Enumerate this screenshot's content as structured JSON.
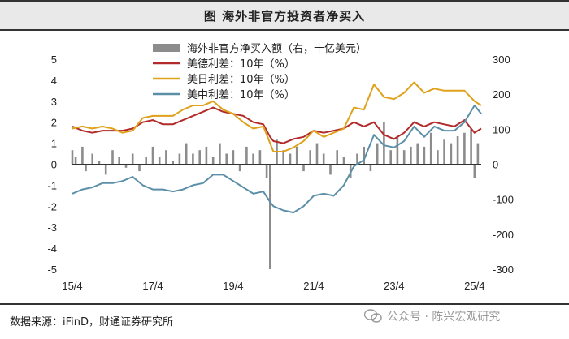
{
  "figure_title": "图  海外非官方投资者净买入",
  "source_note": "数据来源：iFinD，财通证券研究所",
  "watermark": "公众号 · 陈兴宏观研究",
  "colors": {
    "bars": "#8c8c8c",
    "de_spread": "#b22a2a",
    "jp_spread": "#e0a11b",
    "cn_spread": "#5b8fa8"
  },
  "chart_data": {
    "type": "line",
    "x_tick_labels": [
      "15/4",
      "17/4",
      "19/4",
      "21/4",
      "23/4",
      "25/4"
    ],
    "x_range": [
      "2015-04",
      "2025-06"
    ],
    "left_axis": {
      "ticks": [
        "5",
        "4",
        "3",
        "2",
        "1",
        "0",
        "-1",
        "-2",
        "-3",
        "-4",
        "-5"
      ],
      "range": [
        -5,
        5
      ],
      "unit": "%"
    },
    "right_axis": {
      "ticks": [
        "300",
        "200",
        "100",
        "0",
        "-100",
        "-200",
        "-300"
      ],
      "range": [
        -300,
        300
      ],
      "unit": "十亿美元"
    },
    "legend": [
      {
        "key": "bars",
        "label": "海外非官方净买入额（右，十亿美元）"
      },
      {
        "key": "de",
        "label": "美德利差：10年（%）"
      },
      {
        "key": "jp",
        "label": "美日利差：10年（%）"
      },
      {
        "key": "cn",
        "label": "美中利差：10年（%）"
      }
    ],
    "series": [
      {
        "name": "美德利差：10年（%）",
        "axis": "left",
        "x": [
          "2015-04",
          "2015-07",
          "2015-10",
          "2016-01",
          "2016-04",
          "2016-07",
          "2016-10",
          "2017-01",
          "2017-04",
          "2017-07",
          "2017-10",
          "2018-01",
          "2018-04",
          "2018-07",
          "2018-10",
          "2019-01",
          "2019-04",
          "2019-07",
          "2019-10",
          "2020-01",
          "2020-03",
          "2020-04",
          "2020-07",
          "2020-10",
          "2021-01",
          "2021-04",
          "2021-07",
          "2021-10",
          "2022-01",
          "2022-04",
          "2022-07",
          "2022-10",
          "2023-01",
          "2023-04",
          "2023-07",
          "2023-10",
          "2024-01",
          "2024-04",
          "2024-07",
          "2024-10",
          "2025-01",
          "2025-04",
          "2025-06"
        ],
        "y": [
          1.8,
          1.6,
          1.5,
          1.6,
          1.6,
          1.6,
          1.7,
          2.0,
          2.1,
          1.9,
          1.9,
          2.1,
          2.3,
          2.5,
          2.7,
          2.5,
          2.4,
          2.3,
          2.0,
          1.9,
          1.3,
          1.1,
          1.0,
          1.2,
          1.3,
          1.6,
          1.5,
          1.6,
          1.7,
          2.0,
          1.8,
          2.0,
          1.4,
          1.2,
          1.5,
          2.0,
          1.8,
          2.0,
          1.9,
          1.8,
          2.1,
          1.5,
          1.7
        ]
      },
      {
        "name": "美日利差：10年（%）",
        "axis": "left",
        "x": [
          "2015-04",
          "2015-07",
          "2015-10",
          "2016-01",
          "2016-04",
          "2016-07",
          "2016-10",
          "2017-01",
          "2017-04",
          "2017-07",
          "2017-10",
          "2018-01",
          "2018-04",
          "2018-07",
          "2018-10",
          "2019-01",
          "2019-04",
          "2019-07",
          "2019-10",
          "2020-01",
          "2020-03",
          "2020-04",
          "2020-07",
          "2020-10",
          "2021-01",
          "2021-04",
          "2021-07",
          "2021-10",
          "2022-01",
          "2022-04",
          "2022-07",
          "2022-10",
          "2023-01",
          "2023-04",
          "2023-07",
          "2023-10",
          "2024-01",
          "2024-04",
          "2024-07",
          "2024-10",
          "2025-01",
          "2025-04",
          "2025-06"
        ],
        "y": [
          1.7,
          1.8,
          1.7,
          1.8,
          1.7,
          1.5,
          1.6,
          2.2,
          2.3,
          2.3,
          2.3,
          2.6,
          2.8,
          2.8,
          3.0,
          2.6,
          2.4,
          2.0,
          1.7,
          1.8,
          1.0,
          0.6,
          0.6,
          0.8,
          1.1,
          1.6,
          1.3,
          1.5,
          1.7,
          2.7,
          2.6,
          3.8,
          3.2,
          3.1,
          3.4,
          3.9,
          3.4,
          3.6,
          3.5,
          3.5,
          3.5,
          3.0,
          2.8
        ]
      },
      {
        "name": "美中利差：10年（%）",
        "axis": "left",
        "x": [
          "2015-04",
          "2015-07",
          "2015-10",
          "2016-01",
          "2016-04",
          "2016-07",
          "2016-10",
          "2017-01",
          "2017-04",
          "2017-07",
          "2017-10",
          "2018-01",
          "2018-04",
          "2018-07",
          "2018-10",
          "2019-01",
          "2019-04",
          "2019-07",
          "2019-10",
          "2020-01",
          "2020-03",
          "2020-04",
          "2020-07",
          "2020-10",
          "2021-01",
          "2021-04",
          "2021-07",
          "2021-10",
          "2022-01",
          "2022-04",
          "2022-07",
          "2022-10",
          "2023-01",
          "2023-04",
          "2023-07",
          "2023-10",
          "2024-01",
          "2024-04",
          "2024-07",
          "2024-10",
          "2025-01",
          "2025-04",
          "2025-06"
        ],
        "y": [
          -1.4,
          -1.2,
          -1.1,
          -0.9,
          -0.9,
          -0.8,
          -0.6,
          -1.0,
          -1.2,
          -1.2,
          -1.3,
          -1.2,
          -1.0,
          -0.9,
          -0.5,
          -0.5,
          -0.8,
          -1.1,
          -1.4,
          -1.3,
          -1.8,
          -2.0,
          -2.2,
          -2.3,
          -2.0,
          -1.5,
          -1.4,
          -1.5,
          -1.0,
          -0.1,
          0.2,
          1.4,
          0.9,
          0.8,
          1.1,
          1.8,
          1.3,
          1.8,
          1.6,
          1.6,
          2.0,
          2.8,
          2.4
        ]
      },
      {
        "name": "海外非官方净买入额（右，十亿美元）",
        "axis": "right",
        "type": "bar",
        "x": [
          "2015-04",
          "2015-05",
          "2015-07",
          "2015-08",
          "2015-10",
          "2015-12",
          "2016-02",
          "2016-04",
          "2016-06",
          "2016-08",
          "2016-10",
          "2016-12",
          "2017-02",
          "2017-04",
          "2017-06",
          "2017-08",
          "2017-10",
          "2017-12",
          "2018-02",
          "2018-04",
          "2018-06",
          "2018-08",
          "2018-10",
          "2018-12",
          "2019-02",
          "2019-04",
          "2019-06",
          "2019-08",
          "2019-10",
          "2019-12",
          "2020-02",
          "2020-03",
          "2020-05",
          "2020-07",
          "2020-09",
          "2020-11",
          "2021-01",
          "2021-03",
          "2021-05",
          "2021-07",
          "2021-09",
          "2021-11",
          "2022-01",
          "2022-03",
          "2022-05",
          "2022-07",
          "2022-09",
          "2022-11",
          "2023-01",
          "2023-03",
          "2023-05",
          "2023-07",
          "2023-09",
          "2023-11",
          "2024-01",
          "2024-03",
          "2024-05",
          "2024-07",
          "2024-09",
          "2024-11",
          "2025-01",
          "2025-03",
          "2025-04",
          "2025-05"
        ],
        "y": [
          40,
          20,
          50,
          -20,
          30,
          10,
          -30,
          40,
          20,
          -10,
          30,
          -20,
          20,
          50,
          20,
          40,
          10,
          30,
          60,
          30,
          40,
          50,
          20,
          60,
          30,
          40,
          -20,
          50,
          30,
          40,
          -40,
          -300,
          70,
          40,
          30,
          50,
          -20,
          40,
          60,
          30,
          -30,
          40,
          20,
          -40,
          30,
          50,
          -20,
          60,
          120,
          40,
          80,
          40,
          50,
          60,
          50,
          90,
          40,
          70,
          60,
          80,
          90,
          100,
          -40,
          60
        ]
      }
    ]
  }
}
